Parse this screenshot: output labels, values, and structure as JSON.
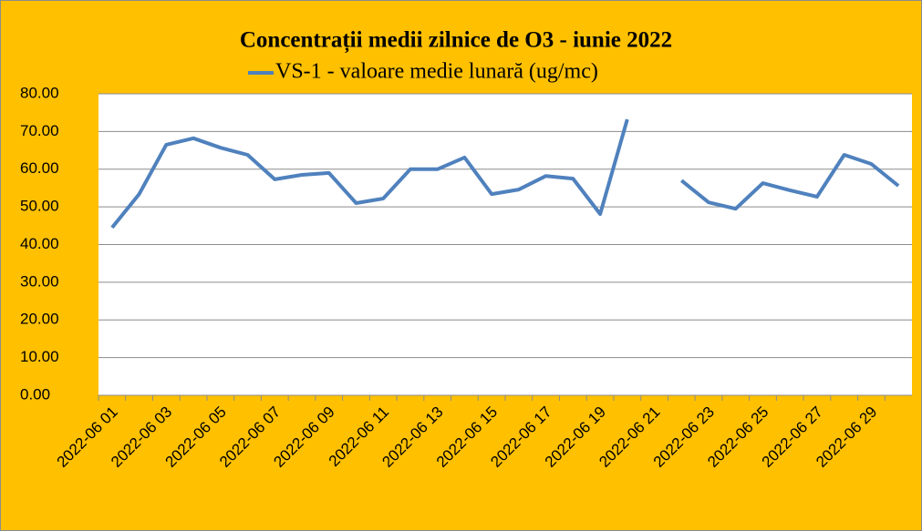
{
  "chart_data": {
    "type": "line",
    "title": "Concentrații  medii zilnice de O3 - iunie 2022",
    "categories": [
      "2022-06 01",
      null,
      "2022-06 03",
      null,
      "2022-06 05",
      null,
      "2022-06 07",
      null,
      "2022-06 09",
      null,
      "2022-06 11",
      null,
      "2022-06 13",
      null,
      "2022-06 15",
      null,
      "2022-06 17",
      null,
      "2022-06 19",
      null,
      "2022-06 21",
      null,
      "2022-06 23",
      null,
      "2022-06 25",
      null,
      "2022-06 27",
      null,
      "2022-06 29",
      null
    ],
    "series": [
      {
        "name": "VS-1 - valoare medie lunară (ug/mc)",
        "color": "#4f81bd",
        "values": [
          44.5,
          53.4,
          66.5,
          68.2,
          65.7,
          63.8,
          57.3,
          58.5,
          59.0,
          51.0,
          52.2,
          60.0,
          60.0,
          63.1,
          53.4,
          54.6,
          58.2,
          57.5,
          48.1,
          73.2,
          null,
          57.0,
          51.2,
          49.5,
          56.3,
          54.4,
          52.7,
          63.8,
          61.4,
          55.6
        ]
      }
    ],
    "ylim": [
      0,
      80
    ],
    "yticks": [
      {
        "value": 0,
        "label": "0.00"
      },
      {
        "value": 10,
        "label": "10.00"
      },
      {
        "value": 20,
        "label": "20.00"
      },
      {
        "value": 30,
        "label": "30.00"
      },
      {
        "value": 40,
        "label": "40.00"
      },
      {
        "value": 50,
        "label": "50.00"
      },
      {
        "value": 60,
        "label": "60.00"
      },
      {
        "value": 70,
        "label": "70.00"
      },
      {
        "value": 80,
        "label": "80.00"
      }
    ],
    "grid": true,
    "legend": "top"
  }
}
